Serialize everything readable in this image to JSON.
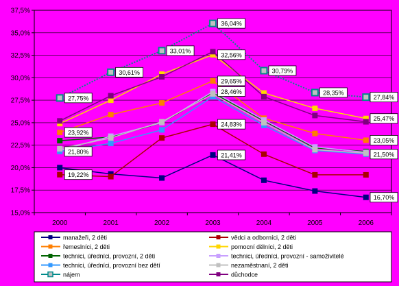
{
  "chart_data": {
    "type": "line",
    "categories": [
      "2000",
      "2001",
      "2002",
      "2003",
      "2004",
      "2005",
      "2006"
    ],
    "ylim": [
      15.0,
      37.5
    ],
    "yticks": [
      "15,0%",
      "17,5%",
      "20,0%",
      "22,5%",
      "25,0%",
      "27,5%",
      "30,0%",
      "32,5%",
      "35,0%",
      "37,5%"
    ],
    "grid": true,
    "legend_position": "bottom",
    "colors": {
      "plot_background": "#ff00ff",
      "legend_background": "#ffffff"
    },
    "series": [
      {
        "name": "manažeři, 2 děti",
        "color": "#000080",
        "marker": "square",
        "values": [
          20.0,
          19.3,
          18.85,
          21.41,
          18.6,
          17.4,
          16.7
        ]
      },
      {
        "name": "vědci a odborníci, 2 děti",
        "color": "#aa0000",
        "marker": "square",
        "values": [
          19.22,
          19.0,
          23.3,
          24.83,
          21.5,
          19.2,
          19.2
        ]
      },
      {
        "name": "řemeslníci, 2 děti",
        "color": "#ff7f00",
        "marker": "square",
        "values": [
          23.92,
          25.9,
          27.2,
          29.65,
          25.5,
          23.8,
          23.05
        ]
      },
      {
        "name": "pomocní dělníci, 2 děti",
        "color": "#ffd700",
        "marker": "square",
        "values": [
          24.9,
          27.5,
          30.4,
          32.56,
          28.3,
          26.6,
          25.47
        ]
      },
      {
        "name": "technici, úředníci, provozní, 2 děti",
        "color": "#006400",
        "marker": "square",
        "values": [
          23.0,
          23.4,
          25.0,
          28.3,
          25.2,
          22.2,
          21.8
        ]
      },
      {
        "name": "technici, úředníci, provozní - samoživitelé",
        "color": "#c8a0ff",
        "marker": "square",
        "values": [
          21.9,
          23.5,
          25.0,
          28.46,
          25.3,
          22.3,
          21.7
        ]
      },
      {
        "name": "technici, úředníci, provozní bez dětí",
        "color": "#3399ff",
        "marker": "square",
        "values": [
          21.8,
          22.7,
          24.2,
          27.9,
          24.7,
          21.9,
          21.5
        ]
      },
      {
        "name": "nezaměstnaní, 2 děti",
        "color": "#c0c0c0",
        "marker": "square",
        "values": [
          22.1,
          23.3,
          25.1,
          28.2,
          25.0,
          22.0,
          21.6
        ]
      },
      {
        "name": "nájem",
        "color": "#008b8b",
        "marker": "square",
        "values": [
          27.75,
          30.61,
          33.01,
          36.04,
          30.79,
          28.35,
          27.84
        ]
      },
      {
        "name": "důchodce",
        "color": "#800080",
        "marker": "square",
        "values": [
          25.2,
          28.0,
          30.1,
          32.9,
          27.9,
          25.8,
          25.1
        ]
      }
    ],
    "data_labels": [
      {
        "series": 8,
        "index": 0,
        "text": "27,75%"
      },
      {
        "series": 8,
        "index": 1,
        "text": "30,61%"
      },
      {
        "series": 8,
        "index": 2,
        "text": "33,01%"
      },
      {
        "series": 8,
        "index": 3,
        "text": "36,04%"
      },
      {
        "series": 8,
        "index": 4,
        "text": "30,79%"
      },
      {
        "series": 8,
        "index": 5,
        "text": "28,35%"
      },
      {
        "series": 8,
        "index": 6,
        "text": "27,84%"
      },
      {
        "series": 3,
        "index": 3,
        "text": "32,56%"
      },
      {
        "series": 3,
        "index": 6,
        "text": "25,47%"
      },
      {
        "series": 2,
        "index": 0,
        "text": "23,92%"
      },
      {
        "series": 2,
        "index": 3,
        "text": "29,65%"
      },
      {
        "series": 2,
        "index": 6,
        "text": "23,05%"
      },
      {
        "series": 5,
        "index": 3,
        "text": "28,46%"
      },
      {
        "series": 6,
        "index": 0,
        "text": "21,80%"
      },
      {
        "series": 6,
        "index": 6,
        "text": "21,50%"
      },
      {
        "series": 1,
        "index": 0,
        "text": "19,22%"
      },
      {
        "series": 1,
        "index": 3,
        "text": "24,83%"
      },
      {
        "series": 0,
        "index": 3,
        "text": "21,41%"
      },
      {
        "series": 0,
        "index": 6,
        "text": "16,70%"
      }
    ]
  }
}
